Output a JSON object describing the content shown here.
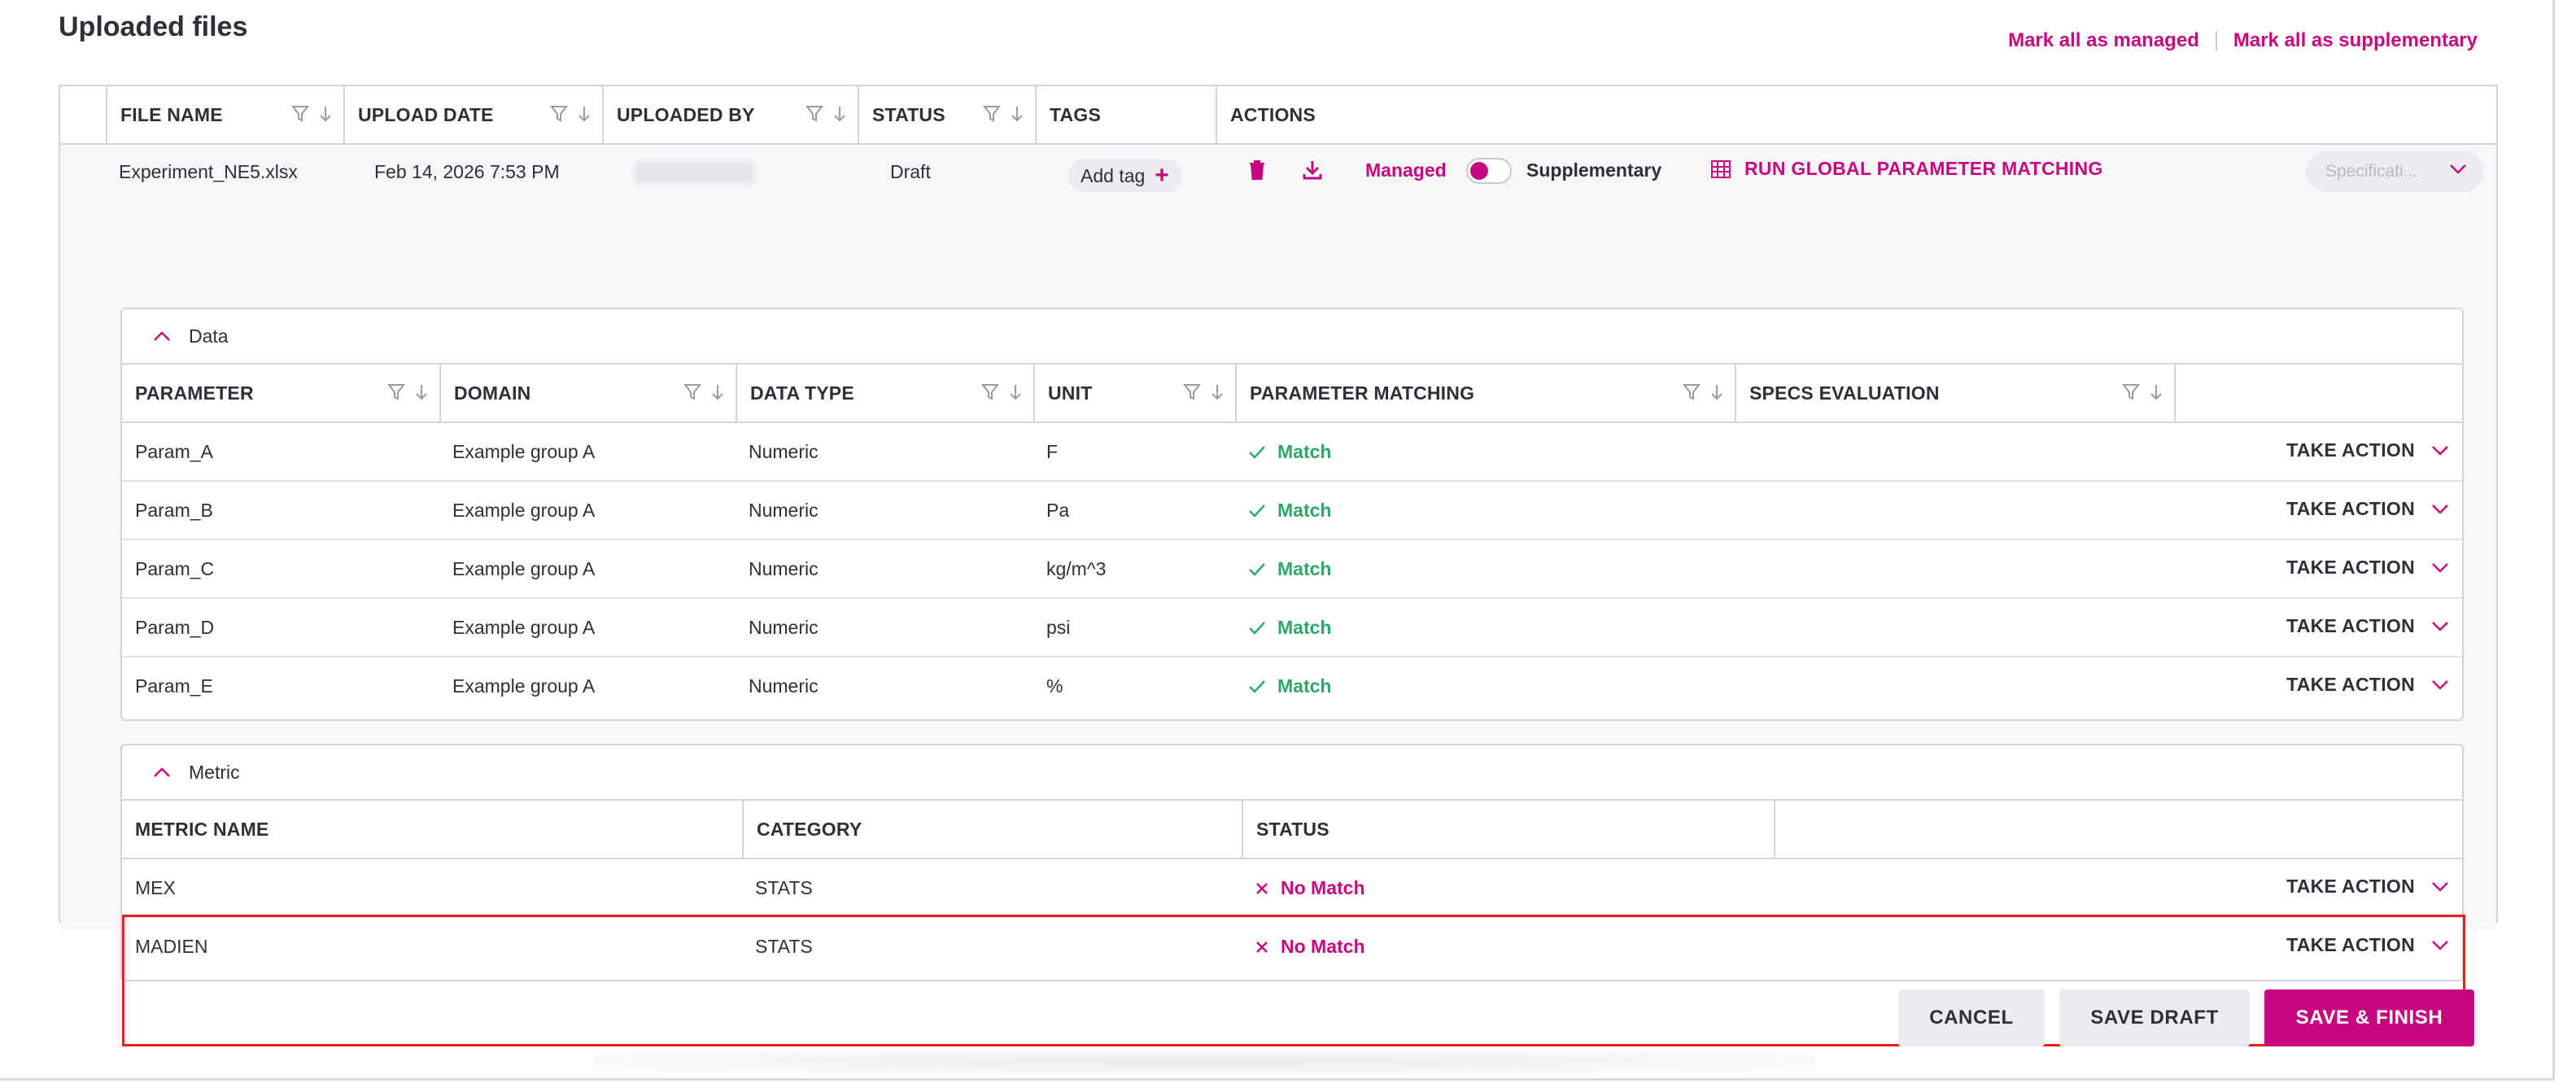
{
  "page": {
    "title": "Uploaded files"
  },
  "top_links": {
    "mark_managed": "Mark all as managed",
    "mark_supplementary": "Mark all as supplementary"
  },
  "files_table": {
    "columns": [
      "FILE NAME",
      "UPLOAD DATE",
      "UPLOADED BY",
      "STATUS",
      "TAGS",
      "ACTIONS"
    ],
    "row": {
      "file_name": "Experiment_NE5.xlsx",
      "upload_date": "Feb 14, 2026 7:53 PM",
      "uploaded_by": "",
      "status": "Draft",
      "add_tag": "Add tag",
      "managed_label": "Managed",
      "supplementary_label": "Supplementary",
      "run_global": "RUN GLOBAL PARAMETER MATCHING",
      "spec_placeholder": "Specificati..."
    }
  },
  "data_panel": {
    "title": "Data",
    "columns": [
      "PARAMETER",
      "DOMAIN",
      "DATA TYPE",
      "UNIT",
      "PARAMETER MATCHING",
      "SPECS EVALUATION"
    ],
    "take_action": "TAKE ACTION",
    "rows": [
      {
        "parameter": "Param_A",
        "domain": "Example group A",
        "data_type": "Numeric",
        "unit": "F",
        "matching": "Match"
      },
      {
        "parameter": "Param_B",
        "domain": "Example group A",
        "data_type": "Numeric",
        "unit": "Pa",
        "matching": "Match"
      },
      {
        "parameter": "Param_C",
        "domain": "Example group A",
        "data_type": "Numeric",
        "unit": "kg/m^3",
        "matching": "Match"
      },
      {
        "parameter": "Param_D",
        "domain": "Example group A",
        "data_type": "Numeric",
        "unit": "psi",
        "matching": "Match"
      },
      {
        "parameter": "Param_E",
        "domain": "Example group A",
        "data_type": "Numeric",
        "unit": "%",
        "matching": "Match"
      }
    ]
  },
  "metric_panel": {
    "title": "Metric",
    "columns": [
      "METRIC NAME",
      "CATEGORY",
      "STATUS"
    ],
    "take_action": "TAKE ACTION",
    "rows": [
      {
        "name": "MEX",
        "category": "STATS",
        "status": "No Match"
      },
      {
        "name": "MADIEN",
        "category": "STATS",
        "status": "No Match"
      }
    ]
  },
  "footer": {
    "cancel": "CANCEL",
    "save_draft": "SAVE DRAFT",
    "save_finish": "SAVE & FINISH"
  },
  "colors": {
    "accent": "#c7077f",
    "match": "#2fa66a",
    "highlight": "#e8201d"
  },
  "icons": [
    "filter-icon",
    "sort-down-icon",
    "chevron-down-icon",
    "chevron-up-icon",
    "trash-icon",
    "download-icon",
    "grid-icon",
    "check-icon",
    "x-icon",
    "plus-icon"
  ]
}
